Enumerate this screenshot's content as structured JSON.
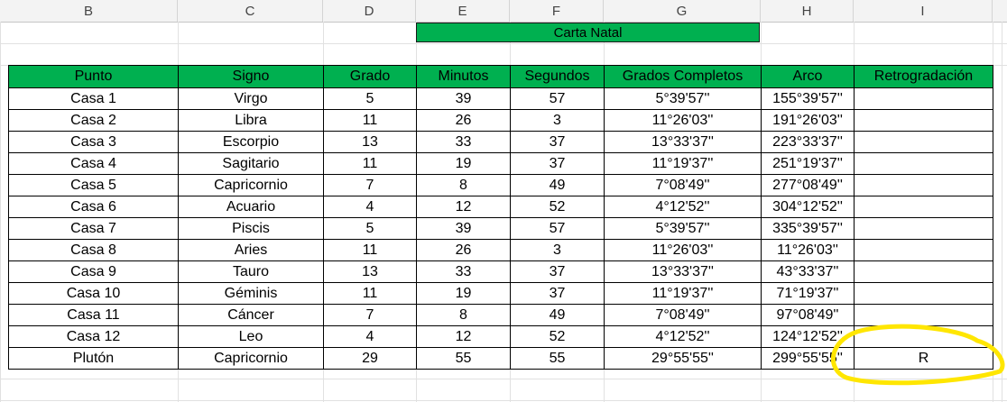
{
  "columns": [
    "B",
    "C",
    "D",
    "E",
    "F",
    "G",
    "H",
    "I"
  ],
  "title": "Carta Natal",
  "headers": [
    "Punto",
    "Signo",
    "Grado",
    "Minutos",
    "Segundos",
    "Grados Completos",
    "Arco",
    "Retrogradación"
  ],
  "rows": [
    [
      "Casa 1",
      "Virgo",
      "5",
      "39",
      "57",
      "5°39'57''",
      "155°39'57''",
      ""
    ],
    [
      "Casa 2",
      "Libra",
      "11",
      "26",
      "3",
      "11°26'03''",
      "191°26'03''",
      ""
    ],
    [
      "Casa 3",
      "Escorpio",
      "13",
      "33",
      "37",
      "13°33'37''",
      "223°33'37''",
      ""
    ],
    [
      "Casa 4",
      "Sagitario",
      "11",
      "19",
      "37",
      "11°19'37''",
      "251°19'37''",
      ""
    ],
    [
      "Casa 5",
      "Capricornio",
      "7",
      "8",
      "49",
      "7°08'49''",
      "277°08'49''",
      ""
    ],
    [
      "Casa 6",
      "Acuario",
      "4",
      "12",
      "52",
      "4°12'52''",
      "304°12'52''",
      ""
    ],
    [
      "Casa 7",
      "Piscis",
      "5",
      "39",
      "57",
      "5°39'57''",
      "335°39'57''",
      ""
    ],
    [
      "Casa 8",
      "Aries",
      "11",
      "26",
      "3",
      "11°26'03''",
      "11°26'03''",
      ""
    ],
    [
      "Casa 9",
      "Tauro",
      "13",
      "33",
      "37",
      "13°33'37''",
      "43°33'37''",
      ""
    ],
    [
      "Casa 10",
      "Géminis",
      "11",
      "19",
      "37",
      "11°19'37''",
      "71°19'37''",
      ""
    ],
    [
      "Casa 11",
      "Cáncer",
      "7",
      "8",
      "49",
      "7°08'49''",
      "97°08'49''",
      ""
    ],
    [
      "Casa 12",
      "Leo",
      "4",
      "12",
      "52",
      "4°12'52''",
      "124°12'52''",
      ""
    ],
    [
      "Plutón",
      "Capricornio",
      "29",
      "55",
      "55",
      "29°55'55''",
      "299°55'55''",
      "R"
    ]
  ],
  "colors": {
    "header_fill": "#00b050",
    "highlight": "#ffe600"
  }
}
